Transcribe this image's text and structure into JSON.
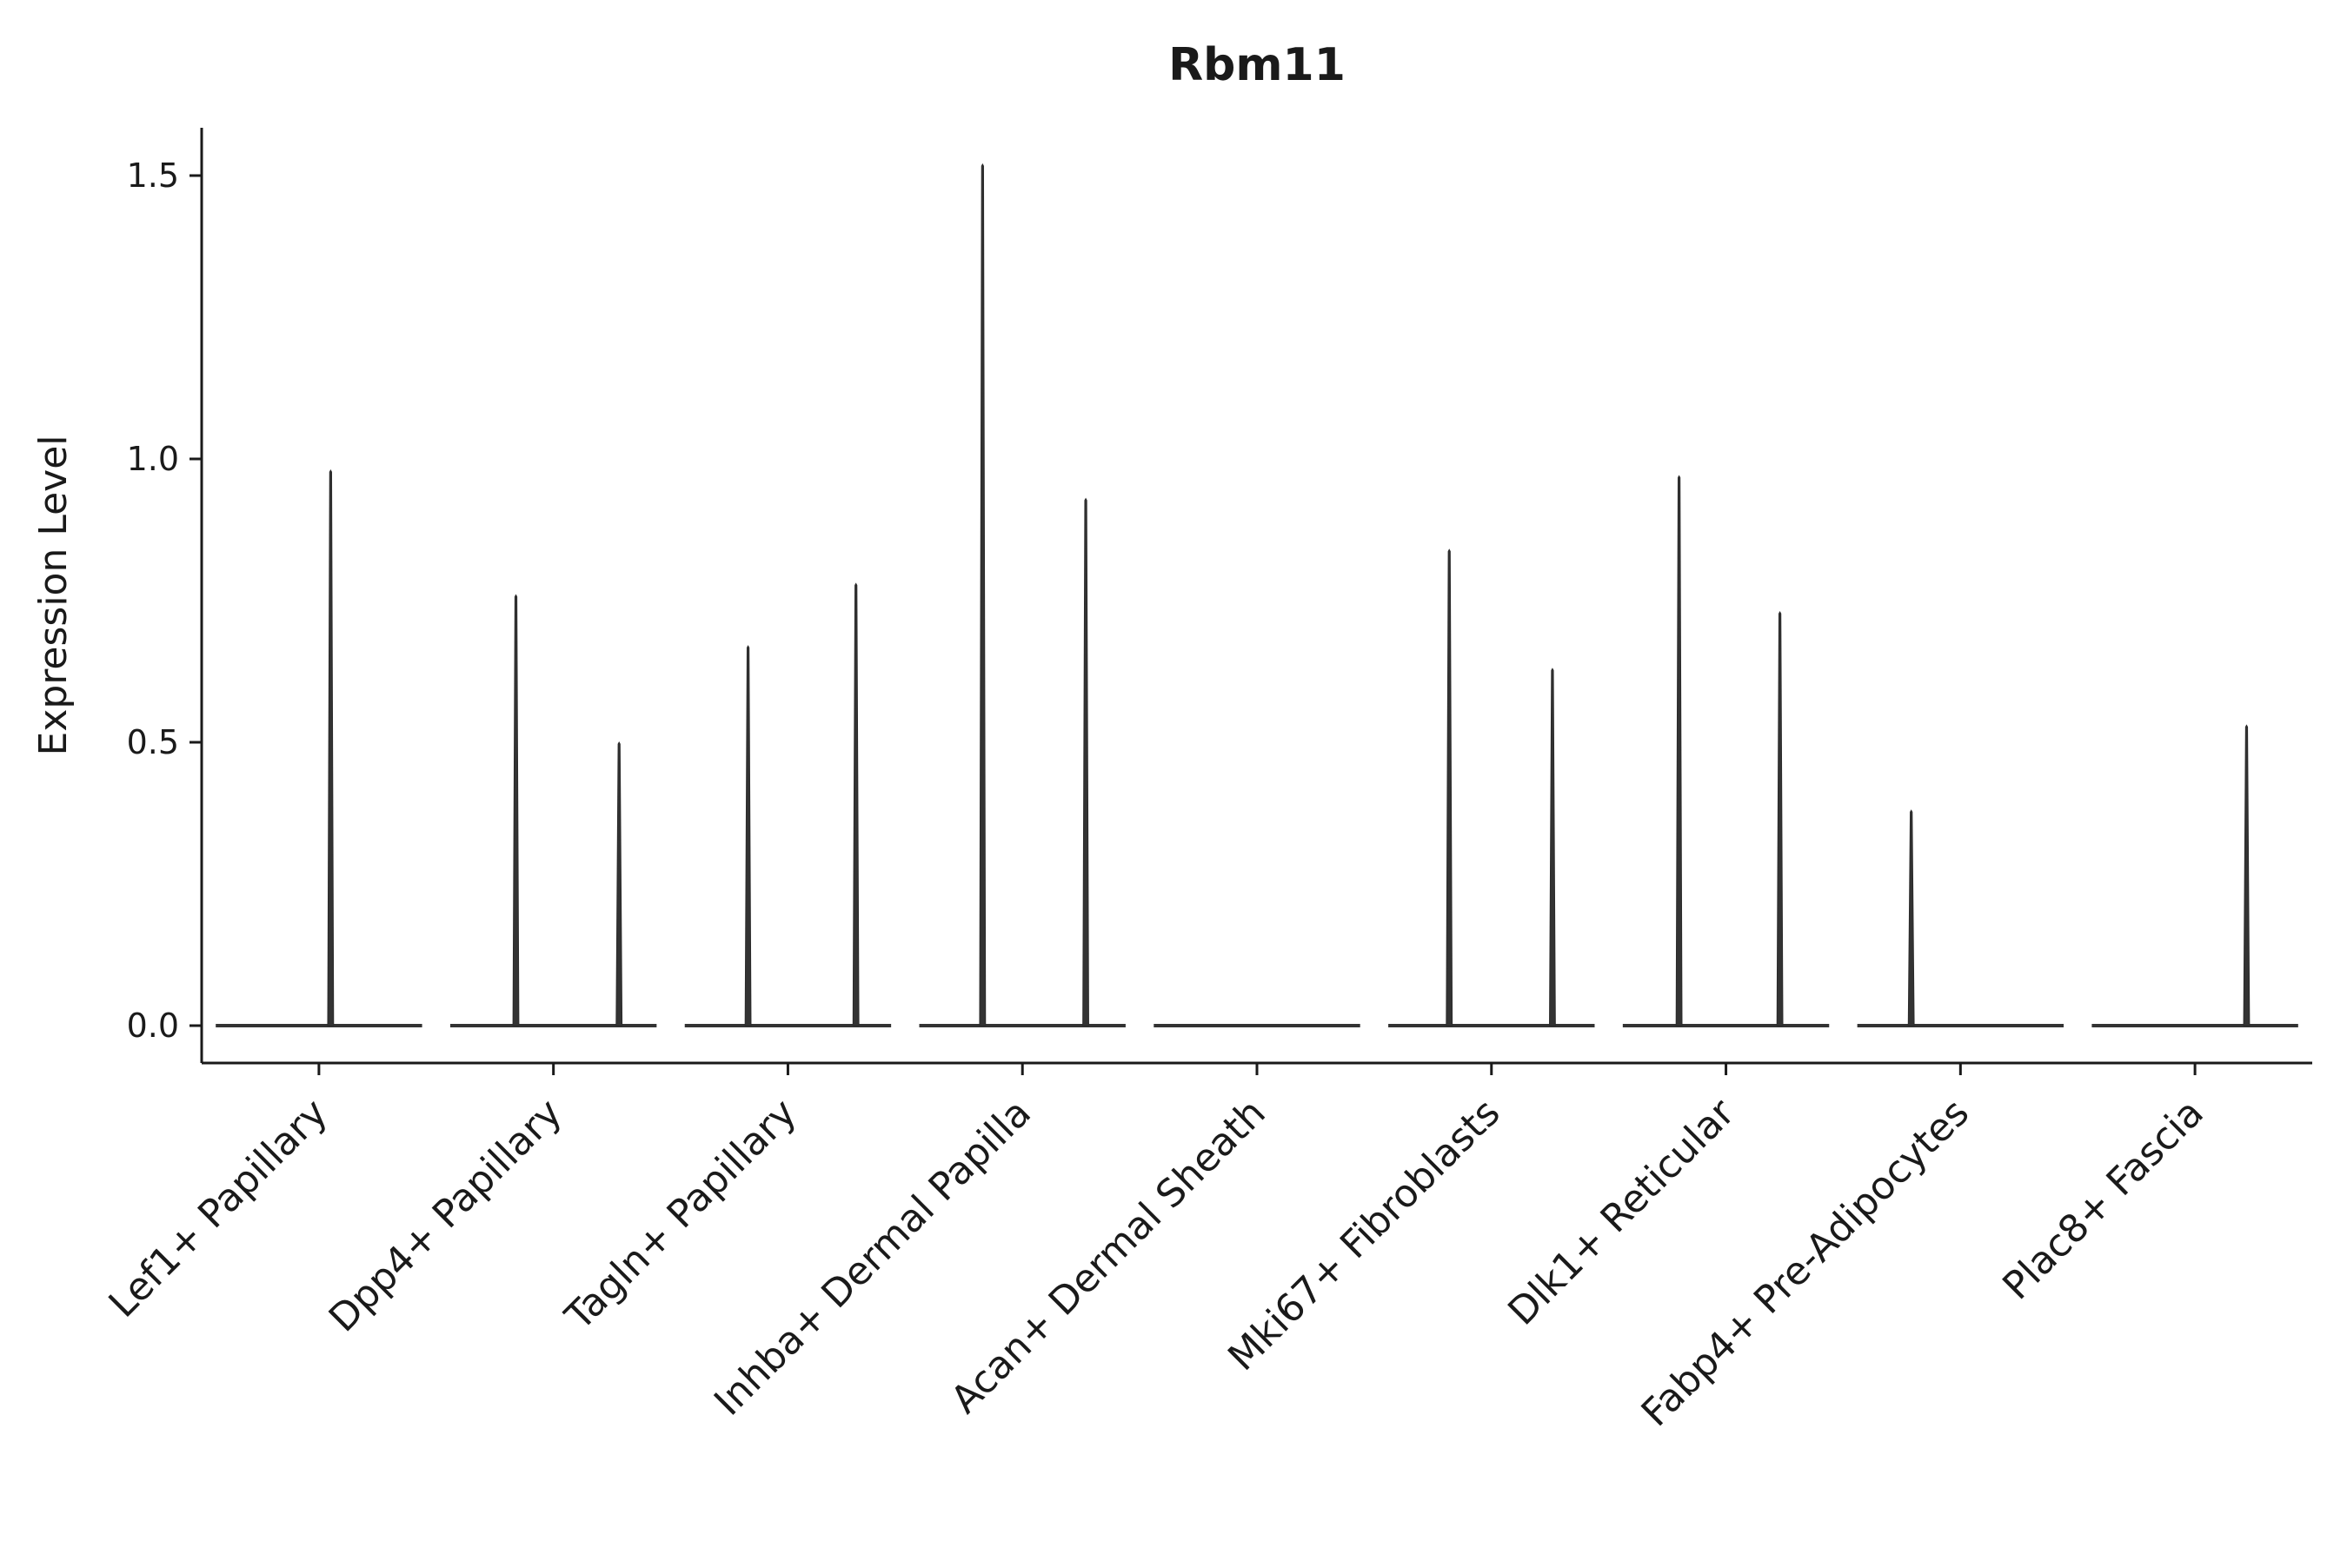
{
  "title": "Rbm11",
  "chart_data": {
    "type": "violin",
    "title": "Rbm11",
    "xlabel": "",
    "ylabel": "Expression Level",
    "ylim": [
      0,
      1.58
    ],
    "yticks": [
      0.0,
      0.5,
      1.0,
      1.5
    ],
    "ytick_labels": [
      "0.0",
      "0.5",
      "1.0",
      "1.5"
    ],
    "grid": false,
    "legend": "none",
    "colors": {
      "violin_fill": "#333333",
      "violin_stroke": "#2a2a2a",
      "axis": "#1a1a1a"
    },
    "categories": [
      "Lef1+ Papillary",
      "Dpp4+ Papillary",
      "Tagln+ Papillary",
      "Inhba+ Dermal Papilla",
      "Acan+ Dermal Sheath",
      "Mki67+ Fibroblasts",
      "Dlk1+ Reticular",
      "Fabp4+ Pre-Adipocytes",
      "Plac8+ Fascia"
    ],
    "violins": [
      {
        "category": "Lef1+ Papillary",
        "baseline": 0.0,
        "spikes": [
          {
            "pos": 0.05,
            "max": 0.98
          }
        ]
      },
      {
        "category": "Dpp4+ Papillary",
        "baseline": 0.0,
        "spikes": [
          {
            "pos": -0.16,
            "max": 0.76
          },
          {
            "pos": 0.28,
            "max": 0.5
          }
        ]
      },
      {
        "category": "Tagln+ Papillary",
        "baseline": 0.0,
        "spikes": [
          {
            "pos": -0.17,
            "max": 0.67
          },
          {
            "pos": 0.29,
            "max": 0.78
          }
        ]
      },
      {
        "category": "Inhba+ Dermal Papilla",
        "baseline": 0.0,
        "spikes": [
          {
            "pos": -0.17,
            "max": 1.52
          },
          {
            "pos": 0.27,
            "max": 0.93
          }
        ]
      },
      {
        "category": "Acan+ Dermal Sheath",
        "baseline": 0.0,
        "spikes": []
      },
      {
        "category": "Mki67+ Fibroblasts",
        "baseline": 0.0,
        "spikes": [
          {
            "pos": -0.18,
            "max": 0.84
          },
          {
            "pos": 0.26,
            "max": 0.63
          }
        ]
      },
      {
        "category": "Dlk1+ Reticular",
        "baseline": 0.0,
        "spikes": [
          {
            "pos": -0.2,
            "max": 0.97
          },
          {
            "pos": 0.23,
            "max": 0.73
          }
        ]
      },
      {
        "category": "Fabp4+ Pre-Adipocytes",
        "baseline": 0.0,
        "spikes": [
          {
            "pos": -0.21,
            "max": 0.38
          }
        ]
      },
      {
        "category": "Plac8+ Fascia",
        "baseline": 0.0,
        "spikes": [
          {
            "pos": 0.22,
            "max": 0.53
          }
        ]
      }
    ]
  }
}
